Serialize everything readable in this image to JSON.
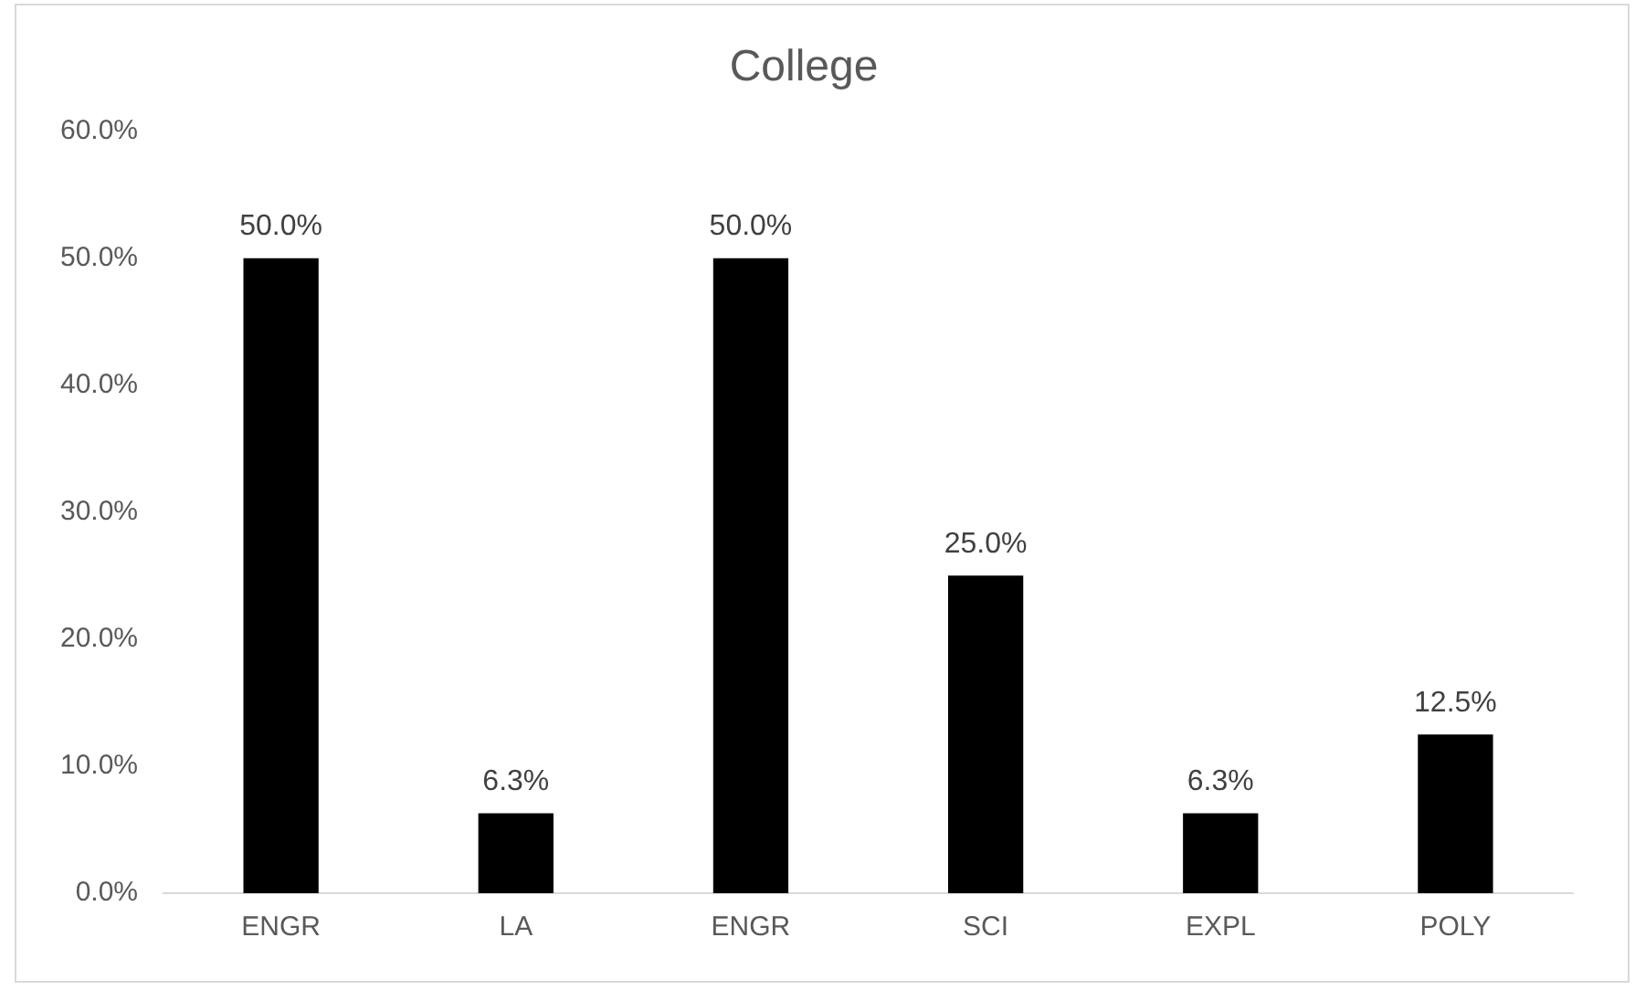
{
  "chart_data": {
    "type": "bar",
    "title": "College",
    "categories": [
      "ENGR",
      "LA",
      "ENGR",
      "SCI",
      "EXPL",
      "POLY"
    ],
    "values": [
      50,
      6.3,
      50,
      25,
      6.3,
      12.5
    ],
    "value_labels": [
      "50.0%",
      "6.3%",
      "50.0%",
      "25.0%",
      "6.3%",
      "12.5%"
    ],
    "color": "#000000",
    "ylim": [
      0,
      60
    ],
    "yticks": [
      {
        "value": 0,
        "label": "0.0%"
      },
      {
        "value": 10,
        "label": "10.0%"
      },
      {
        "value": 20,
        "label": "20.0%"
      },
      {
        "value": 30,
        "label": "30.0%"
      },
      {
        "value": 40,
        "label": "40.0%"
      },
      {
        "value": 50,
        "label": "50.0%"
      },
      {
        "value": 60,
        "label": "60.0%"
      }
    ],
    "grid": false,
    "legend": false
  }
}
